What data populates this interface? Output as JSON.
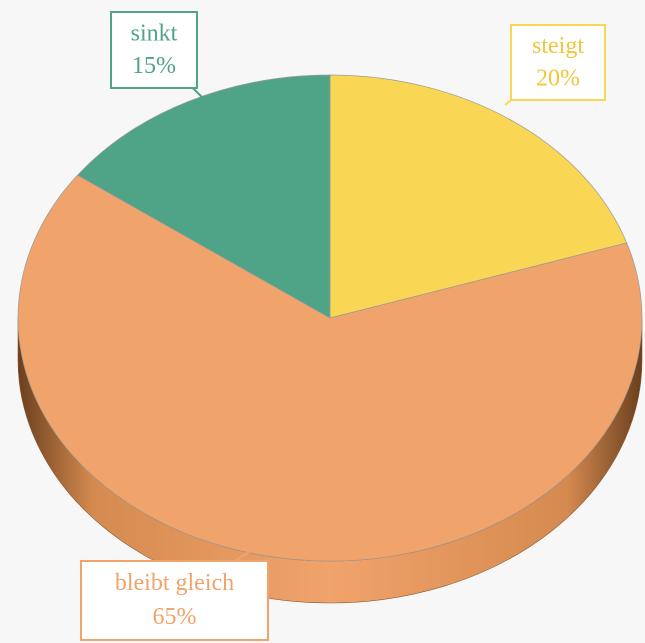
{
  "chart_data": {
    "type": "pie",
    "categories": [
      "steigt",
      "bleibt gleich",
      "sinkt"
    ],
    "values": [
      20,
      65,
      15
    ],
    "value_labels": [
      "20%",
      "65%",
      "15%"
    ],
    "colors": [
      "#f9d654",
      "#f0a36b",
      "#4fa387"
    ]
  }
}
